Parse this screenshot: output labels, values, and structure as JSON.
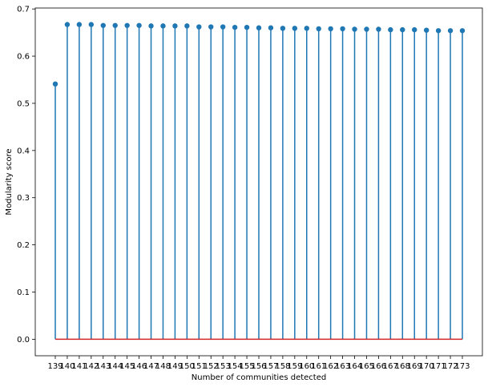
{
  "chart_data": {
    "type": "stem",
    "xlabel": "Number of communities detected",
    "ylabel": "Modularity score",
    "categories": [
      "139",
      "140",
      "141",
      "142",
      "143",
      "144",
      "145",
      "146",
      "147",
      "148",
      "149",
      "150",
      "151",
      "152",
      "153",
      "154",
      "155",
      "156",
      "157",
      "158",
      "159",
      "160",
      "161",
      "162",
      "163",
      "164",
      "165",
      "166",
      "167",
      "168",
      "169",
      "170",
      "171",
      "172",
      "173"
    ],
    "values": [
      0.541,
      0.667,
      0.667,
      0.667,
      0.665,
      0.665,
      0.665,
      0.665,
      0.664,
      0.664,
      0.664,
      0.664,
      0.662,
      0.662,
      0.662,
      0.661,
      0.661,
      0.66,
      0.66,
      0.659,
      0.659,
      0.659,
      0.658,
      0.658,
      0.658,
      0.657,
      0.657,
      0.657,
      0.656,
      0.656,
      0.656,
      0.655,
      0.654,
      0.654,
      0.654
    ],
    "ylim": [
      -0.035,
      0.702
    ],
    "yticks": [
      0.0,
      0.1,
      0.2,
      0.3,
      0.4,
      0.5,
      0.6,
      0.7
    ],
    "ytick_labels": [
      "0.0",
      "0.1",
      "0.2",
      "0.3",
      "0.4",
      "0.5",
      "0.6",
      "0.7"
    ],
    "baseline": 0,
    "grid": false,
    "colors": {
      "stem": "#1f77b4",
      "baseline": "#d62728"
    }
  }
}
